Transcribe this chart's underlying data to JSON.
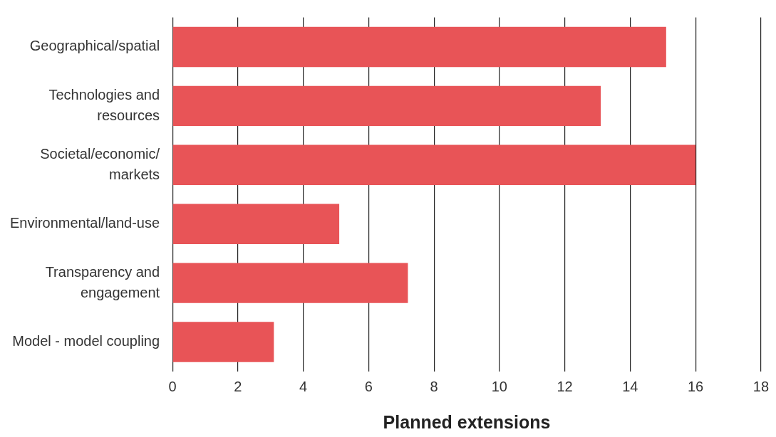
{
  "chart_data": {
    "type": "bar",
    "orientation": "horizontal",
    "xlabel": "Planned extensions",
    "categories": [
      "Geographical/spatial",
      "Technologies and resources",
      "Societal/economic/markets",
      "Environmental/land-use",
      "Transparency and engagement",
      "Model - model coupling"
    ],
    "values": [
      15.1,
      13.1,
      16,
      5.1,
      7.2,
      3.1
    ],
    "color": "#e85457",
    "xlim": [
      0,
      18
    ],
    "xticks": [
      0,
      2,
      4,
      6,
      8,
      10,
      12,
      14,
      16,
      18
    ],
    "grid": "x",
    "legend": false
  }
}
